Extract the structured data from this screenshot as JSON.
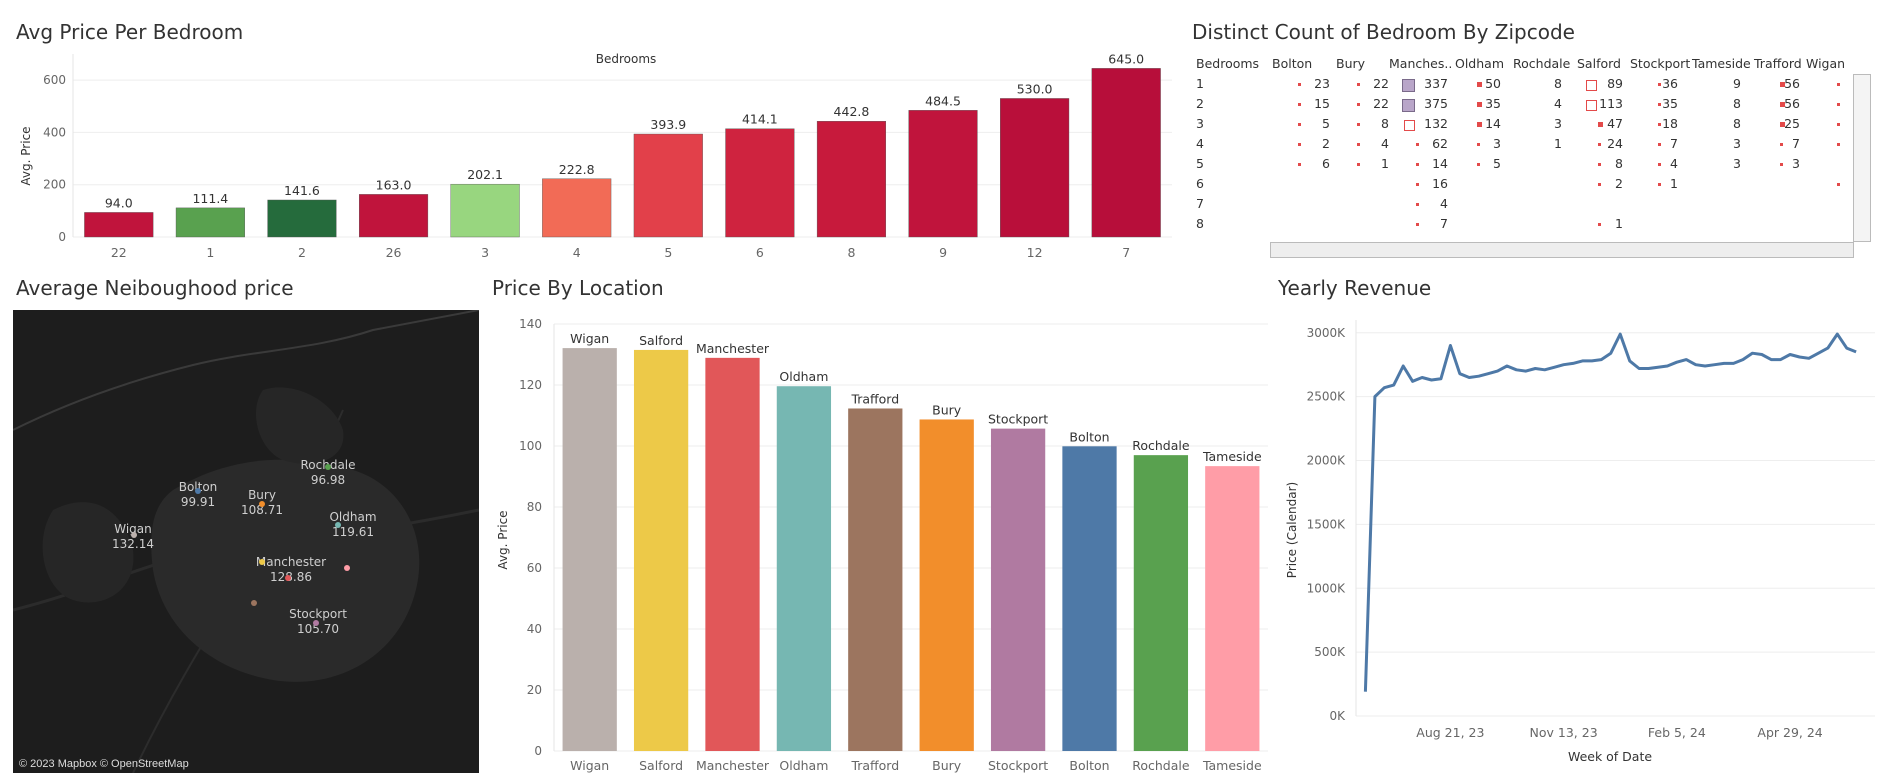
{
  "titles": {
    "avg_price_bedroom": "Avg Price Per Bedroom",
    "distinct_count": "Distinct Count of Bedroom By Zipcode",
    "neighbourhood": "Average Neiboughood price",
    "price_location": "Price By Location",
    "yearly_revenue": "Yearly Revenue"
  },
  "chart_data": [
    {
      "type": "bar",
      "title": "Avg Price Per Bedroom",
      "top_label": "Bedrooms",
      "ylabel": "Avg. Price",
      "ylim": [
        0,
        700
      ],
      "yticks": [
        0,
        200,
        400,
        600
      ],
      "categories": [
        "22",
        "1",
        "2",
        "26",
        "3",
        "4",
        "5",
        "6",
        "8",
        "9",
        "12",
        "7"
      ],
      "values": [
        94.0,
        111.4,
        141.6,
        163.0,
        202.1,
        222.8,
        393.9,
        414.1,
        442.8,
        484.5,
        530.0,
        645.0
      ],
      "labels": [
        "94.0",
        "111.4",
        "141.6",
        "163.0",
        "202.1",
        "222.8",
        "393.9",
        "414.1",
        "442.8",
        "484.5",
        "530.0",
        "645.0"
      ],
      "colors": [
        "#c0143c",
        "#59a14f",
        "#256b3c",
        "#c0143c",
        "#98d67f",
        "#f26b56",
        "#e2404a",
        "#cf233f",
        "#c71a3c",
        "#c0143c",
        "#b90f3a",
        "#b70e3a"
      ]
    },
    {
      "type": "table",
      "title": "Distinct Count of Bedroom By Zipcode",
      "row_header": "Bedrooms",
      "columns": [
        "Bolton",
        "Bury",
        "Manches..",
        "Oldham",
        "Rochdale",
        "Salford",
        "Stockport",
        "Tameside",
        "Trafford",
        "Wigan"
      ],
      "rows": [
        "1",
        "2",
        "3",
        "4",
        "5",
        "6",
        "7",
        "8"
      ],
      "values": [
        [
          "23",
          "22",
          "337",
          "50",
          "8",
          "89",
          "36",
          "9",
          "56",
          ""
        ],
        [
          "15",
          "22",
          "375",
          "35",
          "4",
          "113",
          "35",
          "8",
          "56",
          ""
        ],
        [
          "5",
          "8",
          "132",
          "14",
          "3",
          "47",
          "18",
          "8",
          "25",
          ""
        ],
        [
          "2",
          "4",
          "62",
          "3",
          "1",
          "24",
          "7",
          "3",
          "7",
          ""
        ],
        [
          "6",
          "1",
          "14",
          "5",
          "",
          "8",
          "4",
          "3",
          "3",
          ""
        ],
        [
          "",
          "",
          "16",
          "",
          "",
          "2",
          "1",
          "",
          "",
          ""
        ],
        [
          "",
          "",
          "4",
          "",
          "",
          "",
          "",
          "",
          "",
          ""
        ],
        [
          "",
          "",
          "7",
          "",
          "",
          "1",
          "",
          "",
          "",
          ""
        ]
      ],
      "marks": [
        [
          1,
          1,
          1,
          1,
          0,
          1,
          1,
          0,
          1,
          1
        ],
        [
          1,
          1,
          1,
          1,
          0,
          1,
          1,
          0,
          1,
          1
        ],
        [
          1,
          1,
          1,
          1,
          0,
          1,
          1,
          0,
          1,
          1
        ],
        [
          1,
          1,
          1,
          1,
          0,
          1,
          1,
          0,
          1,
          1
        ],
        [
          1,
          1,
          1,
          1,
          0,
          1,
          1,
          0,
          1,
          0
        ],
        [
          0,
          0,
          1,
          0,
          0,
          1,
          1,
          0,
          0,
          1
        ],
        [
          0,
          0,
          1,
          0,
          0,
          0,
          0,
          0,
          0,
          0
        ],
        [
          0,
          0,
          1,
          0,
          0,
          1,
          0,
          0,
          0,
          0
        ]
      ]
    },
    {
      "type": "bar",
      "title": "Price By Location",
      "ylabel": "Avg. Price",
      "ylim": [
        0,
        140
      ],
      "yticks": [
        0,
        20,
        40,
        60,
        80,
        100,
        120,
        140
      ],
      "categories": [
        "Wigan",
        "Salford",
        "Manchester",
        "Oldham",
        "Trafford",
        "Bury",
        "Stockport",
        "Bolton",
        "Rochdale",
        "Tameside"
      ],
      "values": [
        132.1,
        131.5,
        128.9,
        119.6,
        112.3,
        108.7,
        105.7,
        99.9,
        97.0,
        93.4
      ],
      "colors": [
        "#bab0ac",
        "#edc948",
        "#e15759",
        "#76b7b2",
        "#9c755f",
        "#f28e2b",
        "#b07aa1",
        "#4e79a7",
        "#59a14f",
        "#ff9da7"
      ]
    },
    {
      "type": "line",
      "title": "Yearly Revenue",
      "xlabel": "Week of Date",
      "ylabel": "Price (Calendar)",
      "ylim": [
        0,
        3100000
      ],
      "yticks": [
        0,
        500000,
        1000000,
        1500000,
        2000000,
        2500000,
        3000000
      ],
      "ytick_labels": [
        "0K",
        "500K",
        "1000K",
        "1500K",
        "2000K",
        "2500K",
        "3000K"
      ],
      "xticks": [
        "2023-08-21",
        "2023-11-13",
        "2024-02-05",
        "2024-04-29"
      ],
      "xtick_labels": [
        "Aug 21, 23",
        "Nov 13, 23",
        "Feb 5, 24",
        "Apr 29, 24"
      ],
      "xlim": [
        "2023-06-12",
        "2024-07-01"
      ],
      "series": [
        {
          "color": "#4e79a7",
          "x": [
            "2023-06-19",
            "2023-06-26",
            "2023-07-03",
            "2023-07-10",
            "2023-07-17",
            "2023-07-24",
            "2023-07-31",
            "2023-08-07",
            "2023-08-14",
            "2023-08-21",
            "2023-08-28",
            "2023-09-04",
            "2023-09-11",
            "2023-09-18",
            "2023-09-25",
            "2023-10-02",
            "2023-10-09",
            "2023-10-16",
            "2023-10-23",
            "2023-10-30",
            "2023-11-06",
            "2023-11-13",
            "2023-11-20",
            "2023-11-27",
            "2023-12-04",
            "2023-12-11",
            "2023-12-18",
            "2023-12-25",
            "2024-01-01",
            "2024-01-08",
            "2024-01-15",
            "2024-01-22",
            "2024-01-29",
            "2024-02-05",
            "2024-02-12",
            "2024-02-19",
            "2024-02-26",
            "2024-03-04",
            "2024-03-11",
            "2024-03-18",
            "2024-03-25",
            "2024-04-01",
            "2024-04-08",
            "2024-04-15",
            "2024-04-22",
            "2024-04-29",
            "2024-05-06",
            "2024-05-13",
            "2024-05-20",
            "2024-05-27",
            "2024-06-03",
            "2024-06-10",
            "2024-06-17"
          ],
          "values": [
            190000,
            2500000,
            2570000,
            2590000,
            2740000,
            2620000,
            2650000,
            2630000,
            2640000,
            2900000,
            2680000,
            2650000,
            2660000,
            2680000,
            2700000,
            2740000,
            2710000,
            2700000,
            2720000,
            2710000,
            2730000,
            2750000,
            2760000,
            2780000,
            2780000,
            2790000,
            2840000,
            2990000,
            2780000,
            2720000,
            2720000,
            2730000,
            2740000,
            2770000,
            2790000,
            2750000,
            2740000,
            2750000,
            2760000,
            2760000,
            2790000,
            2840000,
            2830000,
            2790000,
            2790000,
            2830000,
            2810000,
            2800000,
            2840000,
            2880000,
            2990000,
            2880000,
            2850000
          ]
        }
      ]
    }
  ],
  "map": {
    "attribution": "© 2023 Mapbox © OpenStreetMap",
    "cities": [
      {
        "name": "Rochdale",
        "value": "96.98",
        "dot": "#59a14f"
      },
      {
        "name": "Bolton",
        "value": "99.91",
        "dot": "#4e79a7"
      },
      {
        "name": "Bury",
        "value": "108.71",
        "dot": "#f28e2b"
      },
      {
        "name": "Oldham",
        "value": "119.61",
        "dot": "#76b7b2"
      },
      {
        "name": "Wigan",
        "value": "132.14",
        "dot": "#bab0ac"
      },
      {
        "name": "Manchester",
        "value": "128.86",
        "dot": "#e15759"
      },
      {
        "name": "Stockport",
        "value": "105.70",
        "dot": "#b07aa1"
      }
    ],
    "extra_dots": [
      "#edc948",
      "#ff9da7",
      "#9c755f"
    ]
  }
}
